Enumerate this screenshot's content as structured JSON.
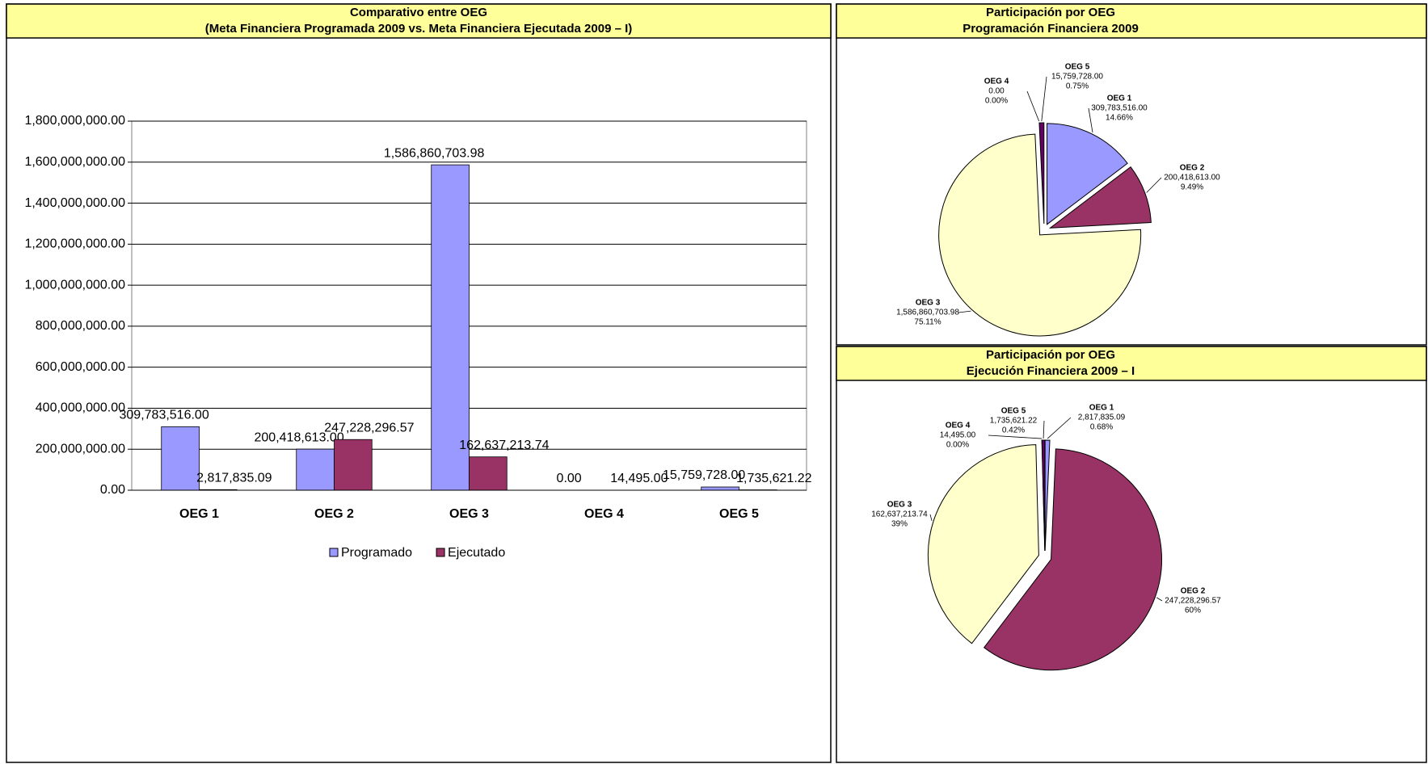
{
  "chart_data": [
    {
      "type": "bar",
      "title": "Comparativo entre OEG",
      "subtitle": "(Meta Financiera Programada 2009 vs. Meta Financiera Ejecutada 2009 – I)",
      "categories": [
        "OEG 1",
        "OEG 2",
        "OEG 3",
        "OEG 4",
        "OEG 5"
      ],
      "series": [
        {
          "name": "Programado",
          "color": "#9999ff",
          "values": [
            309783516,
            200418613,
            1586860703.98,
            0,
            15759728
          ],
          "value_labels": [
            "309,783,516.00",
            "200,418,613.00",
            "1,586,860,703.98",
            "0.00",
            "15,759,728.00"
          ]
        },
        {
          "name": "Ejecutado",
          "color": "#993366",
          "values": [
            2817835.09,
            247228296.57,
            162637213.74,
            14495,
            1735621.22
          ],
          "value_labels": [
            "2,817,835.09",
            "247,228,296.57",
            "162,637,213.74",
            "14,495.00",
            "1,735,621.22"
          ]
        }
      ],
      "ylim": [
        0,
        1800000000
      ],
      "yticks": [
        {
          "value": 0,
          "label": "0.00"
        },
        {
          "value": 200000000,
          "label": "200,000,000.00"
        },
        {
          "value": 400000000,
          "label": "400,000,000.00"
        },
        {
          "value": 600000000,
          "label": "600,000,000.00"
        },
        {
          "value": 800000000,
          "label": "800,000,000.00"
        },
        {
          "value": 1000000000,
          "label": "1,000,000,000.00"
        },
        {
          "value": 1200000000,
          "label": "1,200,000,000.00"
        },
        {
          "value": 1400000000,
          "label": "1,400,000,000.00"
        },
        {
          "value": 1600000000,
          "label": "1,600,000,000.00"
        },
        {
          "value": 1800000000,
          "label": "1,800,000,000.00"
        }
      ],
      "grid": true,
      "legend": "bottom"
    },
    {
      "type": "pie",
      "title": "Participación por OEG",
      "subtitle": "Programación Financiera 2009",
      "categories": [
        "OEG 1",
        "OEG 2",
        "OEG 3",
        "OEG 4",
        "OEG 5"
      ],
      "colors": [
        "#9999ff",
        "#993366",
        "#ffffcc",
        "#ccffff",
        "#660066"
      ],
      "values": [
        309783516,
        200418613,
        1586860703.98,
        0,
        15759728
      ],
      "value_labels": [
        "309,783,516.00",
        "200,418,613.00",
        "1,586,860,703.98",
        "0.00",
        "15,759,728.00"
      ],
      "percents": [
        14.66,
        9.49,
        75.11,
        0,
        0.75
      ],
      "percent_labels": [
        "14.66%",
        "9.49%",
        "75.11%",
        "0.00%",
        "0.75%"
      ]
    },
    {
      "type": "pie",
      "title": "Participación por OEG",
      "subtitle": "Ejecución Financiera 2009 – I",
      "categories": [
        "OEG 1",
        "OEG 2",
        "OEG 3",
        "OEG 4",
        "OEG 5"
      ],
      "colors": [
        "#9999ff",
        "#993366",
        "#ffffcc",
        "#ccffff",
        "#660066"
      ],
      "values": [
        2817835.09,
        247228296.57,
        162637213.74,
        14495,
        1735621.22
      ],
      "value_labels": [
        "2,817,835.09",
        "247,228,296.57",
        "162,637,213.74",
        "14,495.00",
        "1,735,621.22"
      ],
      "percents": [
        0.68,
        60,
        39,
        0,
        0.42
      ],
      "percent_labels": [
        "0.68%",
        "60%",
        "39%",
        "0.00%",
        "0.42%"
      ]
    }
  ]
}
